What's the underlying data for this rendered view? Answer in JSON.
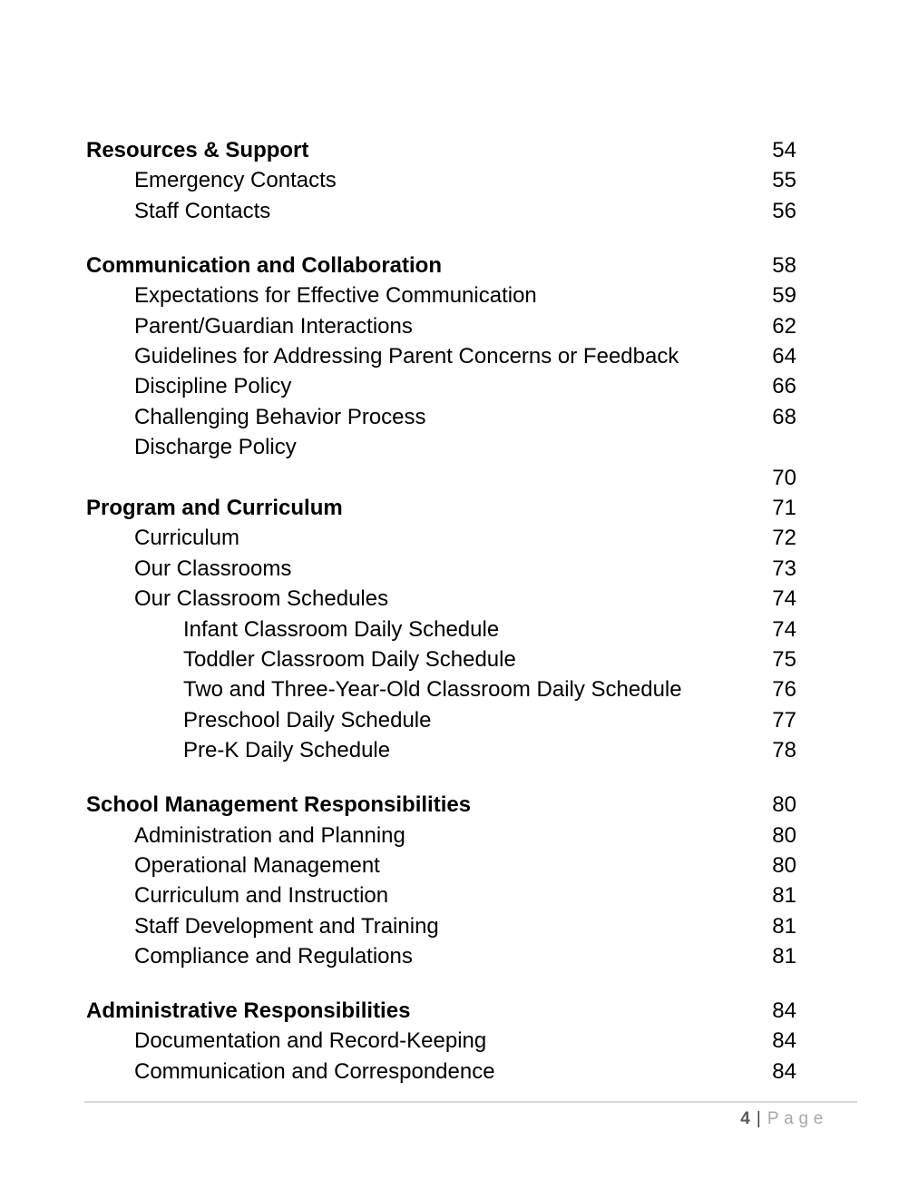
{
  "document": {
    "background": "#ffffff",
    "text_color": "#000000"
  },
  "toc": {
    "entries": [
      {
        "label": "Resources & Support",
        "page": "54",
        "level": 0,
        "bold": true,
        "section_gap": false
      },
      {
        "label": "Emergency Contacts",
        "page": "55",
        "level": 1,
        "bold": false,
        "section_gap": false
      },
      {
        "label": "Staff Contacts",
        "page": "56",
        "level": 1,
        "bold": false,
        "section_gap": false
      },
      {
        "label": "Communication and Collaboration",
        "page": "58",
        "level": 0,
        "bold": true,
        "section_gap": true
      },
      {
        "label": "Expectations for Effective Communication",
        "page": "59",
        "level": 1,
        "bold": false,
        "section_gap": false
      },
      {
        "label": "Parent/Guardian Interactions",
        "page": "62",
        "level": 1,
        "bold": false,
        "section_gap": false
      },
      {
        "label": "Guidelines for Addressing Parent Concerns or Feedback",
        "page": "64",
        "level": 1,
        "bold": false,
        "section_gap": false
      },
      {
        "label": "Discipline Policy",
        "page": "66",
        "level": 1,
        "bold": false,
        "section_gap": false
      },
      {
        "label": "Challenging Behavior Process",
        "page": "68",
        "level": 1,
        "bold": false,
        "section_gap": false
      },
      {
        "label": "Discharge Policy",
        "page": "",
        "level": 1,
        "bold": false,
        "section_gap": false
      },
      {
        "label": "",
        "page": "70",
        "level": 1,
        "bold": false,
        "section_gap": false
      },
      {
        "label": "Program and Curriculum",
        "page": "71",
        "level": 0,
        "bold": true,
        "section_gap": false
      },
      {
        "label": "Curriculum",
        "page": "72",
        "level": 1,
        "bold": false,
        "section_gap": false
      },
      {
        "label": "Our Classrooms",
        "page": "73",
        "level": 1,
        "bold": false,
        "section_gap": false
      },
      {
        "label": "Our Classroom Schedules",
        "page": "74",
        "level": 1,
        "bold": false,
        "section_gap": false
      },
      {
        "label": "Infant Classroom Daily Schedule",
        "page": "74",
        "level": 2,
        "bold": false,
        "section_gap": false
      },
      {
        "label": "Toddler Classroom Daily Schedule",
        "page": "75",
        "level": 2,
        "bold": false,
        "section_gap": false
      },
      {
        "label": "Two and Three-Year-Old Classroom Daily Schedule",
        "page": "76",
        "level": 2,
        "bold": false,
        "section_gap": false
      },
      {
        "label": "Preschool Daily Schedule",
        "page": "77",
        "level": 2,
        "bold": false,
        "section_gap": false
      },
      {
        "label": "Pre-K Daily Schedule",
        "page": "78",
        "level": 2,
        "bold": false,
        "section_gap": false
      },
      {
        "label": "School Management Responsibilities",
        "page": "80",
        "level": 0,
        "bold": true,
        "section_gap": true
      },
      {
        "label": "Administration and Planning",
        "page": "80",
        "level": 1,
        "bold": false,
        "section_gap": false
      },
      {
        "label": "Operational Management",
        "page": "80",
        "level": 1,
        "bold": false,
        "section_gap": false
      },
      {
        "label": "Curriculum and Instruction",
        "page": "81",
        "level": 1,
        "bold": false,
        "section_gap": false
      },
      {
        "label": "Staff Development and Training",
        "page": "81",
        "level": 1,
        "bold": false,
        "section_gap": false
      },
      {
        "label": "Compliance and Regulations",
        "page": "81",
        "level": 1,
        "bold": false,
        "section_gap": false
      },
      {
        "label": "Administrative Responsibilities",
        "page": "84",
        "level": 0,
        "bold": true,
        "section_gap": true
      },
      {
        "label": "Documentation and Record-Keeping",
        "page": "84",
        "level": 1,
        "bold": false,
        "section_gap": false
      },
      {
        "label": "Communication and Correspondence",
        "page": "84",
        "level": 1,
        "bold": false,
        "section_gap": false
      }
    ]
  },
  "footer": {
    "page_number": "4",
    "separator": "|",
    "label": "Page",
    "number_color": "#595959",
    "separator_color": "#404040",
    "label_color": "#a8a8a8",
    "rule_color": "#d9d9d9"
  }
}
